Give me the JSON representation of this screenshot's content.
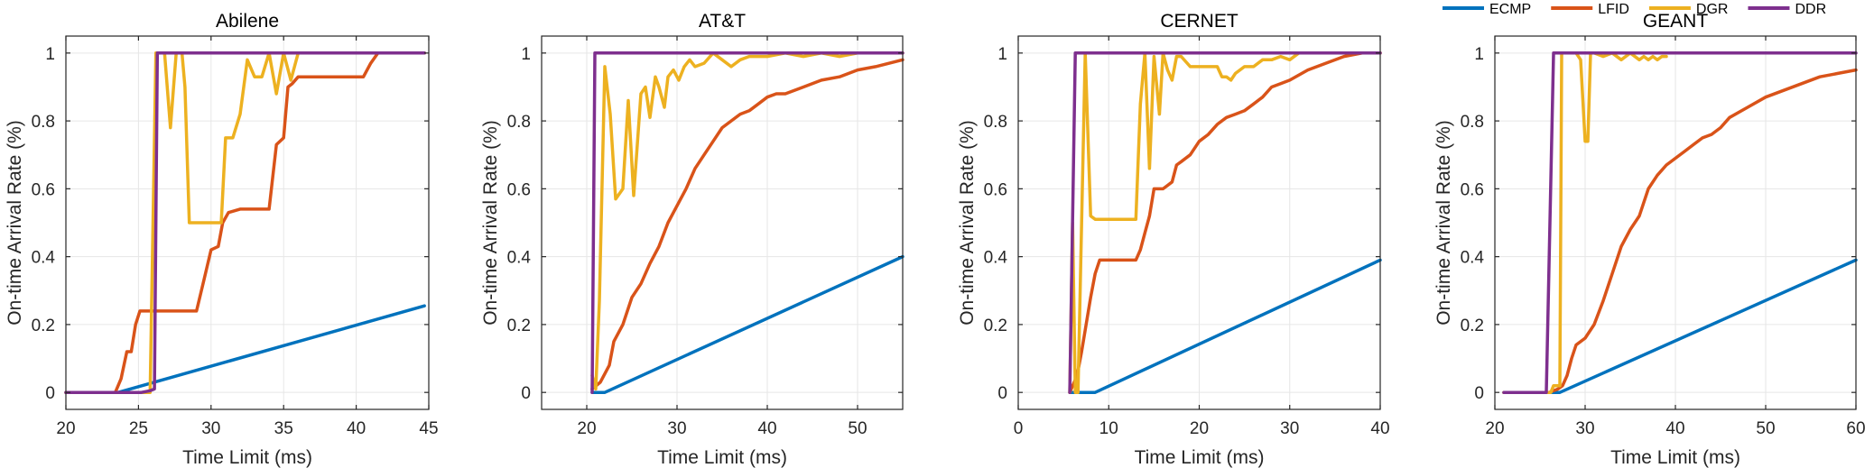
{
  "legend": {
    "placement": "top-right",
    "entries": [
      {
        "name": "ECMP",
        "color": "#0072BD"
      },
      {
        "name": "LFID",
        "color": "#D95319"
      },
      {
        "name": "DGR",
        "color": "#EDB120"
      },
      {
        "name": "DDR",
        "color": "#7E2F8E"
      }
    ]
  },
  "chart_data": [
    {
      "type": "line",
      "title": "Abilene",
      "xlabel": "Time Limit (ms)",
      "ylabel": "On-time Arrival Rate (%)",
      "xlim": [
        20,
        45
      ],
      "ylim": [
        -0.05,
        1.05
      ],
      "xticks": [
        20,
        25,
        30,
        35,
        40,
        45
      ],
      "yticks": [
        0,
        0.2,
        0.4,
        0.6,
        0.8,
        1
      ],
      "grid": true,
      "series": [
        {
          "name": "ECMP",
          "color": "#0072BD",
          "x": [
            20,
            23.6,
            44.7
          ],
          "y": [
            0,
            0,
            0.255
          ]
        },
        {
          "name": "LFID",
          "color": "#D95319",
          "x": [
            20,
            23.4,
            23.8,
            24.2,
            24.5,
            24.8,
            25.1,
            26,
            29,
            29.5,
            30,
            30.5,
            30.8,
            31.2,
            32,
            34,
            34.5,
            35,
            35.3,
            35.6,
            36,
            40.5,
            41,
            41.5,
            44.7
          ],
          "y": [
            0,
            0,
            0.04,
            0.12,
            0.12,
            0.2,
            0.24,
            0.24,
            0.24,
            0.33,
            0.42,
            0.43,
            0.5,
            0.53,
            0.54,
            0.54,
            0.73,
            0.75,
            0.9,
            0.91,
            0.93,
            0.93,
            0.97,
            1,
            1
          ]
        },
        {
          "name": "DGR",
          "color": "#EDB120",
          "x": [
            20,
            25.8,
            26.2,
            26.8,
            27.2,
            27.6,
            28,
            28.2,
            28.5,
            29,
            30,
            30.7,
            31,
            31.5,
            32,
            32.5,
            33,
            33.5,
            34,
            34.5,
            35,
            35.5,
            36,
            44.7
          ],
          "y": [
            0,
            0,
            1,
            1,
            0.78,
            1,
            1,
            0.9,
            0.5,
            0.5,
            0.5,
            0.5,
            0.75,
            0.75,
            0.82,
            0.98,
            0.93,
            0.93,
            1,
            0.88,
            1,
            0.92,
            1,
            1
          ]
        },
        {
          "name": "DDR",
          "color": "#7E2F8E",
          "x": [
            20,
            25.2,
            25.8,
            26.1,
            26.3,
            44.7
          ],
          "y": [
            0,
            0,
            0.005,
            0.01,
            1,
            1
          ]
        }
      ]
    },
    {
      "type": "line",
      "title": "AT&T",
      "xlabel": "Time Limit (ms)",
      "ylabel": "On-time Arrival Rate (%)",
      "xlim": [
        15,
        55
      ],
      "ylim": [
        -0.05,
        1.05
      ],
      "xticks": [
        20,
        30,
        40,
        50
      ],
      "yticks": [
        0,
        0.2,
        0.4,
        0.6,
        0.8,
        1
      ],
      "grid": true,
      "series": [
        {
          "name": "ECMP",
          "color": "#0072BD",
          "x": [
            20.6,
            22,
            55
          ],
          "y": [
            0,
            0,
            0.4
          ]
        },
        {
          "name": "LFID",
          "color": "#D95319",
          "x": [
            20.6,
            21.5,
            22.5,
            23,
            24,
            25,
            26,
            27,
            28,
            29,
            30,
            31,
            32,
            33,
            34,
            35,
            36,
            37,
            38,
            39,
            40,
            41,
            42,
            44,
            46,
            48,
            50,
            52,
            55
          ],
          "y": [
            0.01,
            0.03,
            0.08,
            0.15,
            0.2,
            0.28,
            0.32,
            0.38,
            0.43,
            0.5,
            0.55,
            0.6,
            0.66,
            0.7,
            0.74,
            0.78,
            0.8,
            0.82,
            0.83,
            0.85,
            0.87,
            0.88,
            0.88,
            0.9,
            0.92,
            0.93,
            0.95,
            0.96,
            0.98
          ]
        },
        {
          "name": "DGR",
          "color": "#EDB120",
          "x": [
            20.6,
            21,
            21.4,
            22,
            22.6,
            23.2,
            24,
            24.6,
            25.2,
            26,
            26.5,
            27,
            27.6,
            28,
            28.6,
            29,
            29.6,
            30.2,
            30.8,
            31.4,
            32,
            33,
            34,
            35,
            36,
            37,
            38,
            40,
            42,
            44,
            46,
            48,
            50,
            52,
            55
          ],
          "y": [
            0.05,
            0.01,
            0.27,
            0.96,
            0.82,
            0.57,
            0.6,
            0.86,
            0.58,
            0.88,
            0.9,
            0.81,
            0.93,
            0.9,
            0.84,
            0.93,
            0.95,
            0.92,
            0.96,
            0.98,
            0.96,
            0.97,
            1,
            0.98,
            0.96,
            0.98,
            0.99,
            0.99,
            1,
            0.99,
            1,
            0.99,
            1,
            1,
            1
          ]
        },
        {
          "name": "DDR",
          "color": "#7E2F8E",
          "x": [
            20.6,
            20.9,
            55
          ],
          "y": [
            0,
            1,
            1
          ]
        }
      ]
    },
    {
      "type": "line",
      "title": "CERNET",
      "xlabel": "Time Limit (ms)",
      "ylabel": "On-time Arrival Rate (%)",
      "xlim": [
        0,
        40
      ],
      "ylim": [
        -0.05,
        1.05
      ],
      "xticks": [
        0,
        10,
        20,
        30,
        40
      ],
      "yticks": [
        0,
        0.2,
        0.4,
        0.6,
        0.8,
        1
      ],
      "grid": true,
      "series": [
        {
          "name": "ECMP",
          "color": "#0072BD",
          "x": [
            5.7,
            8.5,
            40
          ],
          "y": [
            0,
            0,
            0.39
          ]
        },
        {
          "name": "LFID",
          "color": "#D95319",
          "x": [
            5.7,
            6.5,
            7,
            7.5,
            8,
            8.5,
            9,
            10,
            12,
            13,
            13.5,
            14,
            14.5,
            15,
            16,
            16.5,
            17,
            17.5,
            18,
            19,
            20,
            21,
            22,
            23,
            24,
            25,
            26,
            27,
            28,
            29,
            30,
            32,
            34,
            36,
            38,
            40
          ],
          "y": [
            0,
            0.05,
            0.12,
            0.2,
            0.28,
            0.35,
            0.39,
            0.39,
            0.39,
            0.39,
            0.42,
            0.47,
            0.52,
            0.6,
            0.6,
            0.61,
            0.62,
            0.67,
            0.68,
            0.7,
            0.74,
            0.76,
            0.79,
            0.81,
            0.82,
            0.83,
            0.85,
            0.87,
            0.9,
            0.91,
            0.92,
            0.95,
            0.97,
            0.99,
            1,
            1
          ]
        },
        {
          "name": "DGR",
          "color": "#EDB120",
          "x": [
            5.7,
            6,
            6.3,
            6.6,
            7,
            7.4,
            8,
            8.5,
            13,
            13.5,
            14,
            14.5,
            15,
            15.6,
            16,
            16.5,
            17,
            17.5,
            18,
            19,
            20,
            21,
            22,
            22.5,
            23,
            23.5,
            24,
            25,
            26,
            27,
            28,
            29,
            30,
            31,
            32,
            34,
            36,
            38,
            40
          ],
          "y": [
            0,
            0.5,
            0,
            0,
            0.5,
            1,
            0.52,
            0.51,
            0.51,
            0.85,
            1,
            0.66,
            0.99,
            0.82,
            1,
            0.95,
            0.92,
            0.99,
            0.99,
            0.96,
            0.96,
            0.96,
            0.96,
            0.93,
            0.93,
            0.92,
            0.94,
            0.96,
            0.96,
            0.98,
            0.98,
            0.99,
            0.98,
            1,
            1,
            1,
            1,
            1,
            1
          ]
        },
        {
          "name": "DDR",
          "color": "#7E2F8E",
          "x": [
            5.7,
            6.3,
            40
          ],
          "y": [
            0,
            1,
            1
          ]
        }
      ]
    },
    {
      "type": "line",
      "title": "GEANT",
      "xlabel": "Time Limit (ms)",
      "ylabel": "On-time Arrival Rate (%)",
      "xlim": [
        20,
        60
      ],
      "ylim": [
        -0.05,
        1.05
      ],
      "xticks": [
        20,
        30,
        40,
        50,
        60
      ],
      "yticks": [
        0,
        0.2,
        0.4,
        0.6,
        0.8,
        1
      ],
      "grid": true,
      "series": [
        {
          "name": "ECMP",
          "color": "#0072BD",
          "x": [
            21,
            27.2,
            60
          ],
          "y": [
            0,
            0,
            0.39
          ]
        },
        {
          "name": "LFID",
          "color": "#D95319",
          "x": [
            21,
            26,
            27,
            27.5,
            28,
            28.5,
            29,
            30,
            31,
            32,
            33,
            34,
            35,
            36,
            37,
            38,
            39,
            40,
            41,
            42,
            43,
            44,
            45,
            46,
            48,
            50,
            52,
            54,
            56,
            58,
            60
          ],
          "y": [
            0,
            0,
            0.01,
            0.02,
            0.05,
            0.1,
            0.14,
            0.16,
            0.2,
            0.27,
            0.35,
            0.43,
            0.48,
            0.52,
            0.6,
            0.64,
            0.67,
            0.69,
            0.71,
            0.73,
            0.75,
            0.76,
            0.78,
            0.81,
            0.84,
            0.87,
            0.89,
            0.91,
            0.93,
            0.94,
            0.95
          ]
        },
        {
          "name": "DGR",
          "color": "#EDB120",
          "x": [
            21,
            26.2,
            26.5,
            27.2,
            27.4,
            27.6,
            28,
            29,
            29.5,
            30,
            30.3,
            30.6,
            31,
            32,
            33,
            34,
            35,
            36,
            36.5,
            37,
            37.5,
            38,
            38.5,
            39
          ],
          "y": [
            0,
            0,
            0.02,
            0.02,
            1,
            1,
            1,
            1,
            0.98,
            0.74,
            0.74,
            1,
            1,
            0.99,
            1,
            0.98,
            1,
            0.98,
            0.99,
            0.98,
            0.99,
            0.98,
            0.99,
            0.99
          ]
        },
        {
          "name": "DDR",
          "color": "#7E2F8E",
          "x": [
            21,
            25.7,
            26.5,
            60
          ],
          "y": [
            0,
            0,
            1,
            1
          ]
        }
      ]
    }
  ]
}
